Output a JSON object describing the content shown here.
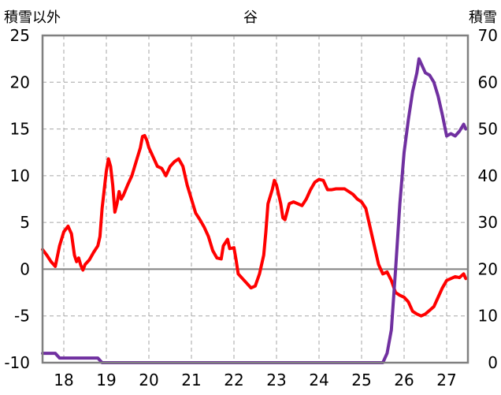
{
  "chart_data": {
    "type": "line",
    "title": "谷",
    "left_axis_label": "積雪以外",
    "right_axis_label": "積雪",
    "left_axis": {
      "min": -10,
      "max": 25,
      "ticks": [
        25,
        20,
        15,
        10,
        5,
        0,
        -5,
        -10
      ]
    },
    "right_axis": {
      "min": 0,
      "max": 70,
      "ticks": [
        70,
        60,
        50,
        40,
        30,
        20,
        10,
        0
      ]
    },
    "x_axis": {
      "min": 17.5,
      "max": 27.5,
      "ticks": [
        "18",
        "19",
        "20",
        "21",
        "22",
        "23",
        "24",
        "25",
        "26",
        "27"
      ]
    },
    "grid": true,
    "zero_line": 0,
    "series": [
      {
        "axis": "left",
        "color": "#ff0000",
        "points": [
          [
            17.5,
            2.1
          ],
          [
            17.6,
            1.5
          ],
          [
            17.7,
            0.8
          ],
          [
            17.8,
            0.3
          ],
          [
            17.9,
            2.5
          ],
          [
            18.0,
            4.0
          ],
          [
            18.1,
            4.6
          ],
          [
            18.18,
            3.8
          ],
          [
            18.25,
            1.5
          ],
          [
            18.3,
            0.8
          ],
          [
            18.35,
            1.2
          ],
          [
            18.4,
            0.4
          ],
          [
            18.45,
            -0.1
          ],
          [
            18.5,
            0.5
          ],
          [
            18.6,
            1.0
          ],
          [
            18.7,
            1.8
          ],
          [
            18.8,
            2.5
          ],
          [
            18.85,
            3.5
          ],
          [
            18.9,
            6.5
          ],
          [
            18.95,
            8.5
          ],
          [
            19.0,
            10.5
          ],
          [
            19.05,
            11.8
          ],
          [
            19.1,
            11.0
          ],
          [
            19.15,
            9.0
          ],
          [
            19.2,
            6.1
          ],
          [
            19.25,
            7.0
          ],
          [
            19.3,
            8.3
          ],
          [
            19.35,
            7.5
          ],
          [
            19.4,
            7.9
          ],
          [
            19.5,
            9.0
          ],
          [
            19.6,
            10.0
          ],
          [
            19.7,
            11.5
          ],
          [
            19.8,
            13.0
          ],
          [
            19.85,
            14.2
          ],
          [
            19.9,
            14.3
          ],
          [
            19.95,
            13.8
          ],
          [
            20.0,
            13.0
          ],
          [
            20.1,
            12.0
          ],
          [
            20.2,
            11.0
          ],
          [
            20.3,
            10.8
          ],
          [
            20.4,
            10.0
          ],
          [
            20.5,
            11.0
          ],
          [
            20.6,
            11.5
          ],
          [
            20.7,
            11.8
          ],
          [
            20.8,
            11.0
          ],
          [
            20.9,
            9.0
          ],
          [
            21.0,
            7.5
          ],
          [
            21.1,
            6.0
          ],
          [
            21.2,
            5.3
          ],
          [
            21.3,
            4.5
          ],
          [
            21.4,
            3.5
          ],
          [
            21.5,
            2.0
          ],
          [
            21.6,
            1.2
          ],
          [
            21.7,
            1.1
          ],
          [
            21.75,
            2.5
          ],
          [
            21.85,
            3.2
          ],
          [
            21.9,
            2.2
          ],
          [
            22.0,
            2.3
          ],
          [
            22.05,
            1.0
          ],
          [
            22.1,
            -0.5
          ],
          [
            22.2,
            -1.0
          ],
          [
            22.3,
            -1.5
          ],
          [
            22.4,
            -2.0
          ],
          [
            22.5,
            -1.8
          ],
          [
            22.6,
            -0.5
          ],
          [
            22.7,
            1.5
          ],
          [
            22.75,
            4.0
          ],
          [
            22.8,
            7.0
          ],
          [
            22.9,
            8.5
          ],
          [
            22.95,
            9.5
          ],
          [
            23.0,
            9.0
          ],
          [
            23.1,
            7.0
          ],
          [
            23.15,
            5.5
          ],
          [
            23.2,
            5.3
          ],
          [
            23.3,
            7.0
          ],
          [
            23.4,
            7.2
          ],
          [
            23.5,
            7.0
          ],
          [
            23.6,
            6.8
          ],
          [
            23.7,
            7.5
          ],
          [
            23.8,
            8.5
          ],
          [
            23.9,
            9.3
          ],
          [
            24.0,
            9.6
          ],
          [
            24.1,
            9.5
          ],
          [
            24.2,
            8.5
          ],
          [
            24.3,
            8.5
          ],
          [
            24.4,
            8.6
          ],
          [
            24.5,
            8.6
          ],
          [
            24.6,
            8.6
          ],
          [
            24.7,
            8.3
          ],
          [
            24.8,
            8.0
          ],
          [
            24.9,
            7.5
          ],
          [
            25.0,
            7.2
          ],
          [
            25.1,
            6.5
          ],
          [
            25.2,
            4.5
          ],
          [
            25.3,
            2.5
          ],
          [
            25.4,
            0.5
          ],
          [
            25.5,
            -0.5
          ],
          [
            25.6,
            -0.3
          ],
          [
            25.7,
            -1.2
          ],
          [
            25.8,
            -2.5
          ],
          [
            25.9,
            -2.8
          ],
          [
            26.0,
            -3.0
          ],
          [
            26.1,
            -3.5
          ],
          [
            26.2,
            -4.5
          ],
          [
            26.3,
            -4.8
          ],
          [
            26.4,
            -5.0
          ],
          [
            26.5,
            -4.8
          ],
          [
            26.6,
            -4.4
          ],
          [
            26.7,
            -4.0
          ],
          [
            26.8,
            -3.0
          ],
          [
            26.9,
            -2.0
          ],
          [
            27.0,
            -1.2
          ],
          [
            27.1,
            -1.0
          ],
          [
            27.2,
            -0.8
          ],
          [
            27.3,
            -0.9
          ],
          [
            27.4,
            -0.5
          ],
          [
            27.45,
            -1.0
          ]
        ]
      },
      {
        "axis": "right",
        "color": "#7030a0",
        "points": [
          [
            17.5,
            2.0
          ],
          [
            17.8,
            2.0
          ],
          [
            17.9,
            1.0
          ],
          [
            18.1,
            1.0
          ],
          [
            18.4,
            1.0
          ],
          [
            18.8,
            1.0
          ],
          [
            18.9,
            0.0
          ],
          [
            25.5,
            0.0
          ],
          [
            25.6,
            2.0
          ],
          [
            25.7,
            7.0
          ],
          [
            25.8,
            20.0
          ],
          [
            25.9,
            34.0
          ],
          [
            26.0,
            45.0
          ],
          [
            26.1,
            52.0
          ],
          [
            26.2,
            58.0
          ],
          [
            26.3,
            62.0
          ],
          [
            26.35,
            65.0
          ],
          [
            26.4,
            64.0
          ],
          [
            26.5,
            62.0
          ],
          [
            26.6,
            61.5
          ],
          [
            26.7,
            60.0
          ],
          [
            26.8,
            57.0
          ],
          [
            26.9,
            53.0
          ],
          [
            27.0,
            48.5
          ],
          [
            27.1,
            49.0
          ],
          [
            27.2,
            48.5
          ],
          [
            27.3,
            49.5
          ],
          [
            27.4,
            51.0
          ],
          [
            27.45,
            50.0
          ]
        ]
      }
    ]
  }
}
